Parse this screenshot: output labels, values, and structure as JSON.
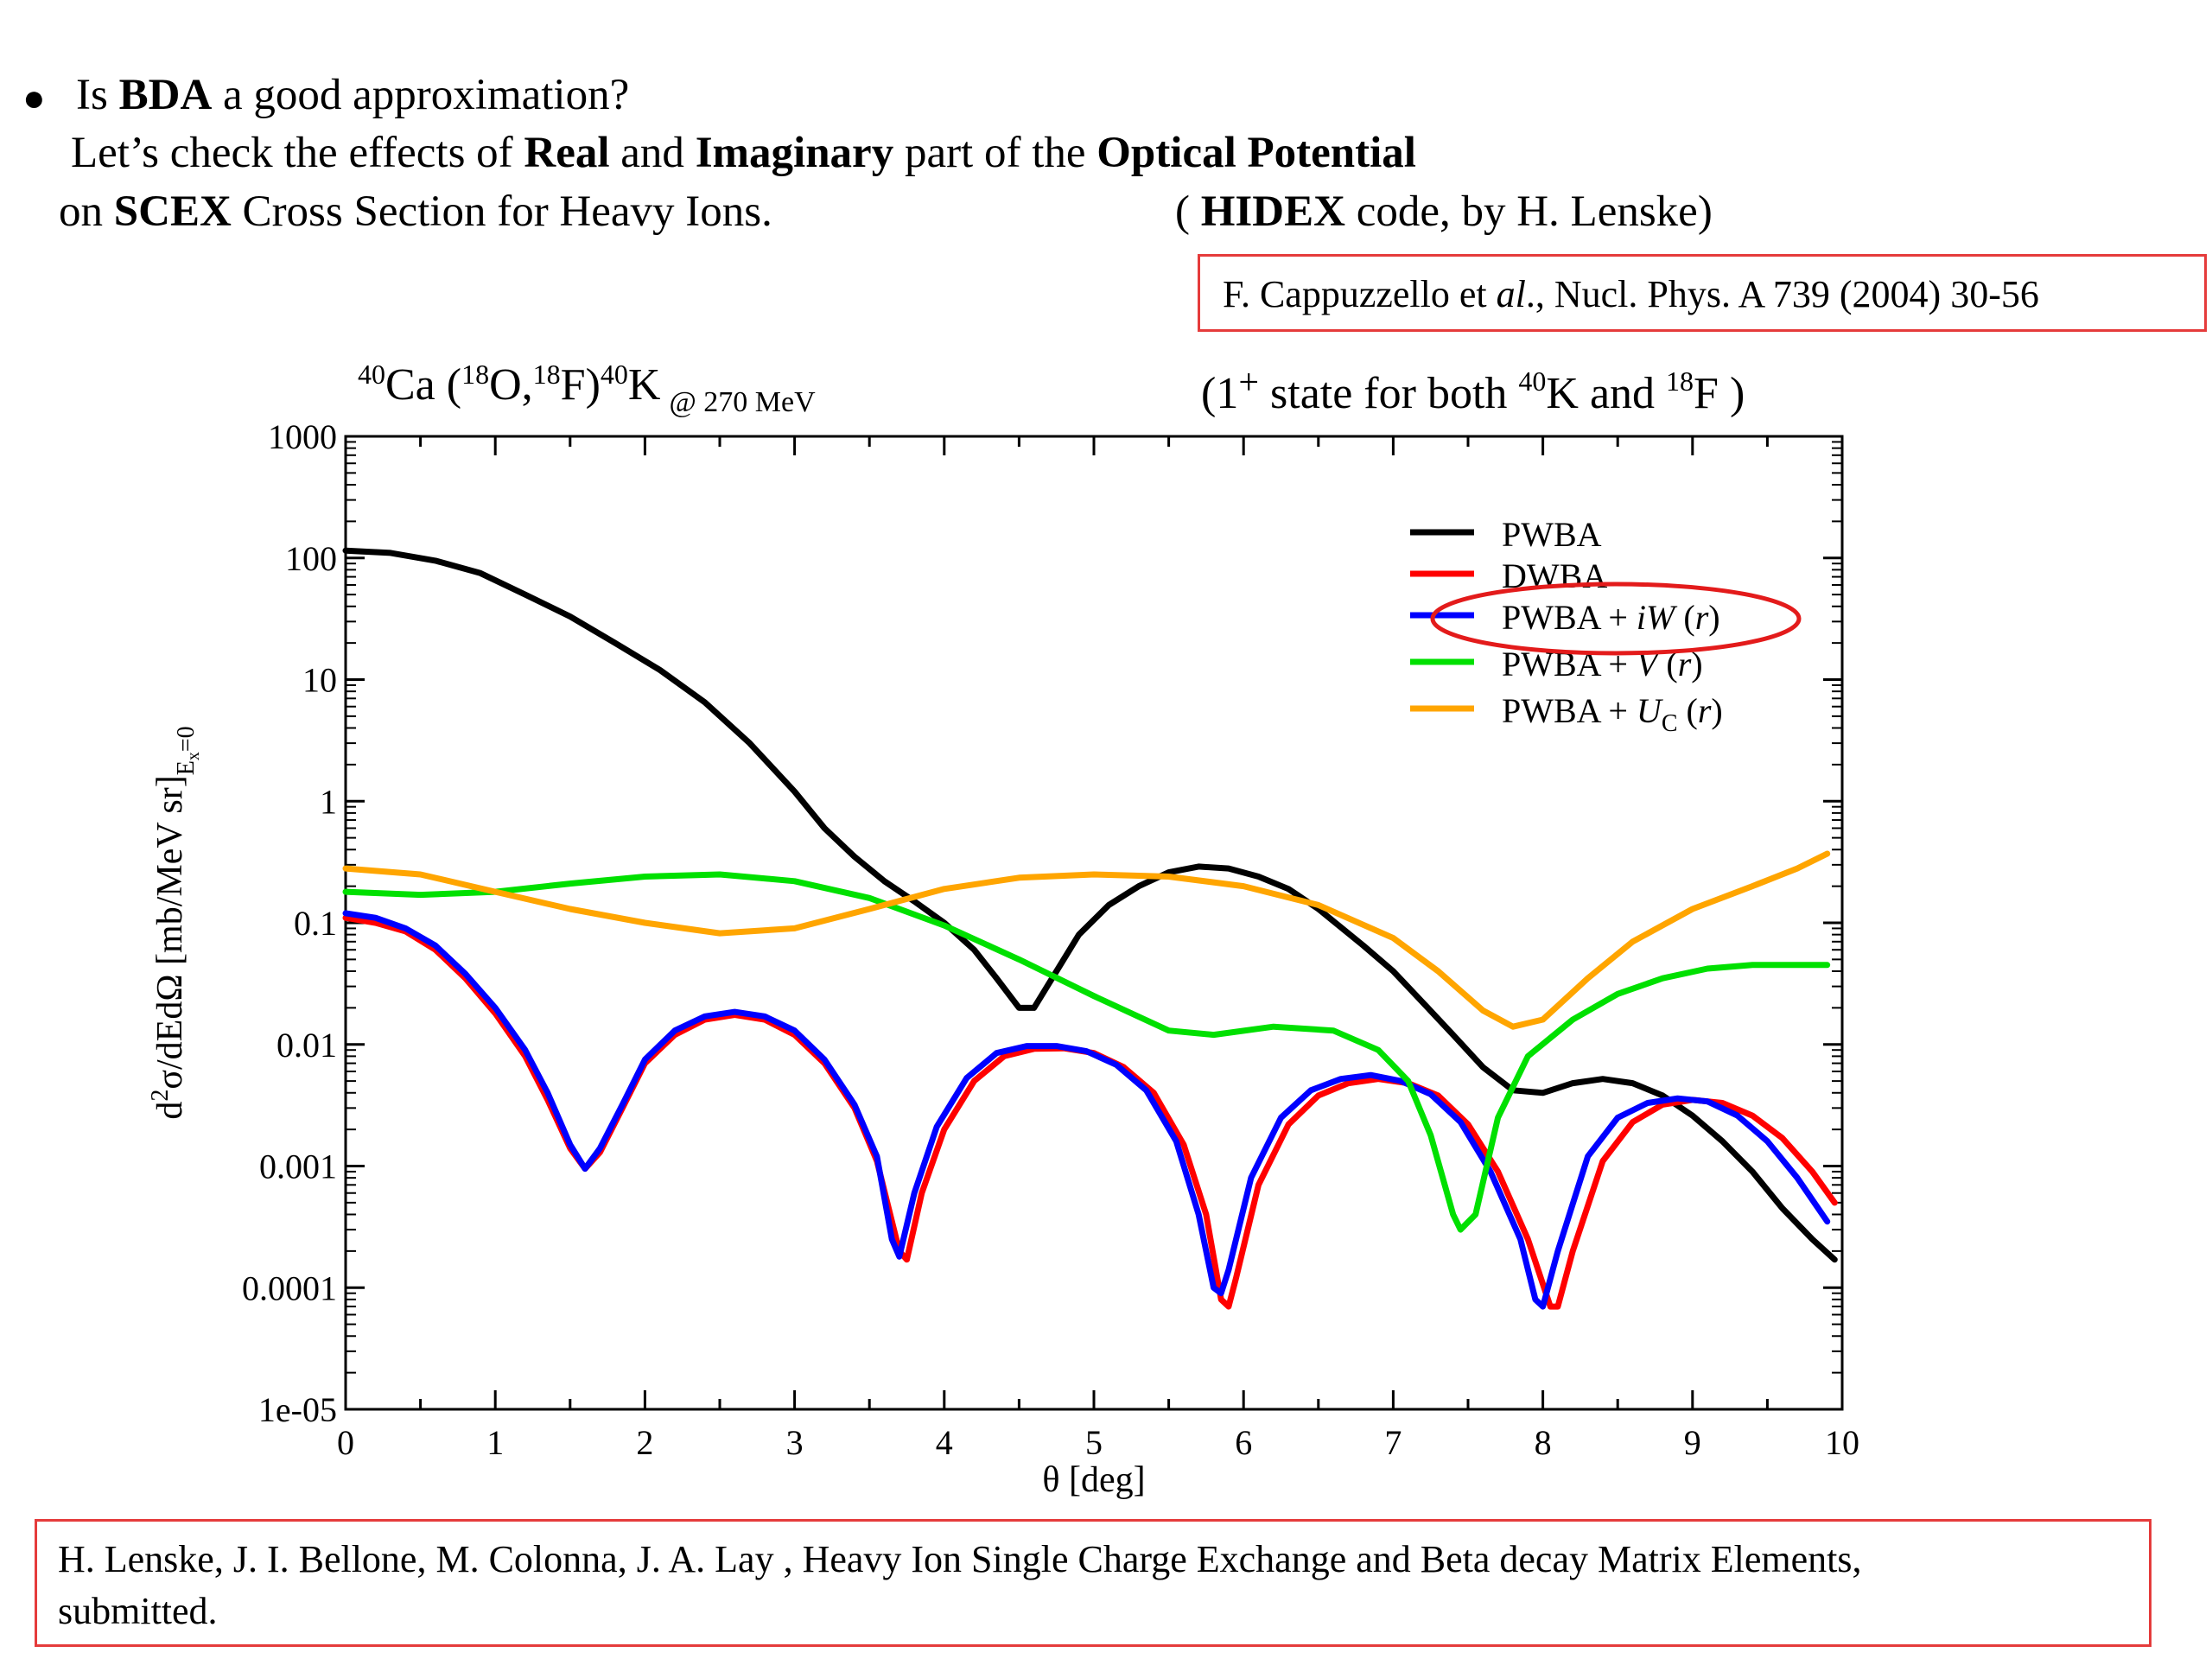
{
  "header": {
    "bullet": "●",
    "line1": {
      "a": "Is ",
      "b": "BDA",
      "c": " a good approximation?"
    },
    "line2": {
      "a": "Let’s check the effects of  ",
      "b": "Real",
      "c": " and ",
      "d": "Imaginary",
      "e": " part of the ",
      "f": "Optical Potential"
    },
    "line3": {
      "a": "on ",
      "b": "SCEX",
      "c": " Cross Section for Heavy Ions."
    },
    "line3_right": {
      "a": "( ",
      "b": "HIDEX",
      "c": " code,  by H. Lenske)"
    }
  },
  "reference_top": {
    "a": "F. Cappuzzello et ",
    "b": "al",
    "c": "., Nucl. Phys. A 739 (2004) 30-56"
  },
  "reference_bottom": {
    "line1": "H. Lenske, J. I. Bellone, M. Colonna, J. A. Lay ,  Heavy Ion Single Charge Exchange and Beta decay Matrix Elements,",
    "line2": "submitted."
  },
  "colors": {
    "highlight_box": "#e53b3b",
    "highlight_ellipse": "#e31b1b"
  },
  "chart_data": {
    "type": "line",
    "title": {
      "reaction": {
        "s40a": "40",
        "ca": "Ca (",
        "s18a": "18",
        "o": "O,",
        "s18b": "18",
        "f": "F)",
        "s40b": "40",
        "k": "K",
        "energy": "@ 270 MeV"
      },
      "state": {
        "a": "(1",
        "plus": "+",
        "b": " state for both ",
        "s40": "40",
        "k": "K  and ",
        "s18": "18",
        "f": "F )"
      }
    },
    "xlabel": "θ [deg]",
    "ylabel": {
      "main": "d",
      "sup": "2",
      "rest": "σ/dEdΩ [mb/MeV sr]",
      "sub": "E",
      "subsub": "x",
      "subend": "=0"
    },
    "xlim": [
      0,
      10
    ],
    "ylim": [
      1e-05,
      1000
    ],
    "yscale": "log",
    "grid": false,
    "legend_position": "top-right",
    "x_ticks": [
      "0",
      "1",
      "2",
      "3",
      "4",
      "5",
      "6",
      "7",
      "8",
      "9",
      "10"
    ],
    "y_ticks": [
      "1e-05",
      "0.0001",
      "0.001",
      "0.01",
      "0.1",
      "1",
      "10",
      "100",
      "1000"
    ],
    "highlighted_series": "PWBA + iW (r)",
    "series": [
      {
        "name": "PWBA",
        "label": {
          "text": "PWBA"
        },
        "color": "#000000",
        "points": [
          [
            0,
            115
          ],
          [
            0.3,
            110
          ],
          [
            0.6,
            95
          ],
          [
            0.9,
            75
          ],
          [
            1.2,
            50
          ],
          [
            1.5,
            33
          ],
          [
            1.8,
            20
          ],
          [
            2.1,
            12
          ],
          [
            2.4,
            6.5
          ],
          [
            2.7,
            3
          ],
          [
            3.0,
            1.2
          ],
          [
            3.2,
            0.6
          ],
          [
            3.4,
            0.35
          ],
          [
            3.6,
            0.22
          ],
          [
            3.8,
            0.15
          ],
          [
            4.0,
            0.1
          ],
          [
            4.2,
            0.06
          ],
          [
            4.35,
            0.035
          ],
          [
            4.5,
            0.02
          ],
          [
            4.6,
            0.02
          ],
          [
            4.75,
            0.04
          ],
          [
            4.9,
            0.08
          ],
          [
            5.1,
            0.14
          ],
          [
            5.3,
            0.2
          ],
          [
            5.5,
            0.26
          ],
          [
            5.7,
            0.29
          ],
          [
            5.9,
            0.28
          ],
          [
            6.1,
            0.24
          ],
          [
            6.3,
            0.19
          ],
          [
            6.5,
            0.13
          ],
          [
            6.8,
            0.065
          ],
          [
            7.0,
            0.04
          ],
          [
            7.2,
            0.022
          ],
          [
            7.4,
            0.012
          ],
          [
            7.6,
            0.0065
          ],
          [
            7.8,
            0.0042
          ],
          [
            8.0,
            0.004
          ],
          [
            8.2,
            0.0048
          ],
          [
            8.4,
            0.0052
          ],
          [
            8.6,
            0.0048
          ],
          [
            8.8,
            0.0038
          ],
          [
            9.0,
            0.0026
          ],
          [
            9.2,
            0.0016
          ],
          [
            9.4,
            0.0009
          ],
          [
            9.6,
            0.00045
          ],
          [
            9.8,
            0.00025
          ],
          [
            9.95,
            0.00017
          ]
        ]
      },
      {
        "name": "DWBA",
        "label": {
          "text": "DWBA"
        },
        "color": "#ff0000",
        "points": [
          [
            0,
            0.11
          ],
          [
            0.2,
            0.1
          ],
          [
            0.4,
            0.085
          ],
          [
            0.6,
            0.06
          ],
          [
            0.8,
            0.035
          ],
          [
            1.0,
            0.018
          ],
          [
            1.2,
            0.008
          ],
          [
            1.35,
            0.0035
          ],
          [
            1.5,
            0.0014
          ],
          [
            1.6,
            0.00095
          ],
          [
            1.7,
            0.0013
          ],
          [
            1.85,
            0.003
          ],
          [
            2.0,
            0.007
          ],
          [
            2.2,
            0.012
          ],
          [
            2.4,
            0.016
          ],
          [
            2.6,
            0.0175
          ],
          [
            2.8,
            0.016
          ],
          [
            3.0,
            0.012
          ],
          [
            3.2,
            0.007
          ],
          [
            3.4,
            0.003
          ],
          [
            3.55,
            0.0011
          ],
          [
            3.7,
            0.0002
          ],
          [
            3.75,
            0.00017
          ],
          [
            3.85,
            0.0006
          ],
          [
            4.0,
            0.002
          ],
          [
            4.2,
            0.005
          ],
          [
            4.4,
            0.008
          ],
          [
            4.6,
            0.0092
          ],
          [
            4.8,
            0.0093
          ],
          [
            5.0,
            0.0085
          ],
          [
            5.2,
            0.0065
          ],
          [
            5.4,
            0.004
          ],
          [
            5.6,
            0.0015
          ],
          [
            5.75,
            0.0004
          ],
          [
            5.85,
            8e-05
          ],
          [
            5.9,
            7e-05
          ],
          [
            5.95,
            0.00012
          ],
          [
            6.1,
            0.0007
          ],
          [
            6.3,
            0.0022
          ],
          [
            6.5,
            0.0038
          ],
          [
            6.7,
            0.0048
          ],
          [
            6.9,
            0.0052
          ],
          [
            7.1,
            0.0048
          ],
          [
            7.3,
            0.0038
          ],
          [
            7.5,
            0.0022
          ],
          [
            7.7,
            0.0009
          ],
          [
            7.9,
            0.00025
          ],
          [
            8.05,
            7e-05
          ],
          [
            8.1,
            7e-05
          ],
          [
            8.2,
            0.0002
          ],
          [
            8.4,
            0.0011
          ],
          [
            8.6,
            0.0023
          ],
          [
            8.8,
            0.0032
          ],
          [
            9.0,
            0.0035
          ],
          [
            9.2,
            0.0033
          ],
          [
            9.4,
            0.0026
          ],
          [
            9.6,
            0.0017
          ],
          [
            9.8,
            0.0009
          ],
          [
            9.95,
            0.0005
          ]
        ]
      },
      {
        "name": "PWBA + iW (r)",
        "label": {
          "a": "PWBA + ",
          "i": "iW",
          "b": " (",
          "r": "r",
          "c": ")"
        },
        "color": "#0000ff",
        "points": [
          [
            0,
            0.12
          ],
          [
            0.2,
            0.11
          ],
          [
            0.4,
            0.09
          ],
          [
            0.6,
            0.065
          ],
          [
            0.8,
            0.038
          ],
          [
            1.0,
            0.02
          ],
          [
            1.2,
            0.009
          ],
          [
            1.35,
            0.004
          ],
          [
            1.5,
            0.0015
          ],
          [
            1.6,
            0.00095
          ],
          [
            1.7,
            0.0014
          ],
          [
            1.85,
            0.0032
          ],
          [
            2.0,
            0.0075
          ],
          [
            2.2,
            0.013
          ],
          [
            2.4,
            0.017
          ],
          [
            2.6,
            0.0185
          ],
          [
            2.8,
            0.017
          ],
          [
            3.0,
            0.013
          ],
          [
            3.2,
            0.0075
          ],
          [
            3.4,
            0.0032
          ],
          [
            3.55,
            0.0012
          ],
          [
            3.65,
            0.00025
          ],
          [
            3.7,
            0.00018
          ],
          [
            3.8,
            0.0006
          ],
          [
            3.95,
            0.0021
          ],
          [
            4.15,
            0.0053
          ],
          [
            4.35,
            0.0085
          ],
          [
            4.55,
            0.0097
          ],
          [
            4.75,
            0.0097
          ],
          [
            4.95,
            0.0088
          ],
          [
            5.15,
            0.0068
          ],
          [
            5.35,
            0.0042
          ],
          [
            5.55,
            0.0016
          ],
          [
            5.7,
            0.0004
          ],
          [
            5.8,
            0.0001
          ],
          [
            5.85,
            9e-05
          ],
          [
            5.9,
            0.00014
          ],
          [
            6.05,
            0.0008
          ],
          [
            6.25,
            0.0025
          ],
          [
            6.45,
            0.0042
          ],
          [
            6.65,
            0.0052
          ],
          [
            6.85,
            0.0056
          ],
          [
            7.05,
            0.005
          ],
          [
            7.25,
            0.0039
          ],
          [
            7.45,
            0.0023
          ],
          [
            7.65,
            0.0009
          ],
          [
            7.85,
            0.00025
          ],
          [
            7.95,
            8e-05
          ],
          [
            8.0,
            7e-05
          ],
          [
            8.1,
            0.0002
          ],
          [
            8.3,
            0.0012
          ],
          [
            8.5,
            0.0025
          ],
          [
            8.7,
            0.0033
          ],
          [
            8.9,
            0.0036
          ],
          [
            9.1,
            0.0034
          ],
          [
            9.3,
            0.0026
          ],
          [
            9.5,
            0.0016
          ],
          [
            9.7,
            0.0008
          ],
          [
            9.9,
            0.00035
          ]
        ]
      },
      {
        "name": "PWBA + V (r)",
        "label": {
          "a": "PWBA + ",
          "i": "V",
          "b": " (",
          "r": "r",
          "c": ")"
        },
        "color": "#00e000",
        "points": [
          [
            0,
            0.18
          ],
          [
            0.5,
            0.17
          ],
          [
            1.0,
            0.18
          ],
          [
            1.5,
            0.21
          ],
          [
            2.0,
            0.24
          ],
          [
            2.5,
            0.25
          ],
          [
            3.0,
            0.22
          ],
          [
            3.5,
            0.16
          ],
          [
            4.0,
            0.095
          ],
          [
            4.5,
            0.05
          ],
          [
            5.0,
            0.025
          ],
          [
            5.5,
            0.013
          ],
          [
            5.8,
            0.012
          ],
          [
            6.2,
            0.014
          ],
          [
            6.6,
            0.013
          ],
          [
            6.9,
            0.009
          ],
          [
            7.1,
            0.005
          ],
          [
            7.25,
            0.0018
          ],
          [
            7.4,
            0.0004
          ],
          [
            7.45,
            0.0003
          ],
          [
            7.55,
            0.0004
          ],
          [
            7.7,
            0.0025
          ],
          [
            7.9,
            0.008
          ],
          [
            8.2,
            0.016
          ],
          [
            8.5,
            0.026
          ],
          [
            8.8,
            0.035
          ],
          [
            9.1,
            0.042
          ],
          [
            9.4,
            0.045
          ],
          [
            9.9,
            0.045
          ]
        ]
      },
      {
        "name": "PWBA + UC (r)",
        "label": {
          "a": "PWBA + ",
          "i": "U",
          "sub": "C",
          "b": " (",
          "r": "r",
          "c": ")"
        },
        "color": "#ffa500",
        "points": [
          [
            0,
            0.28
          ],
          [
            0.5,
            0.25
          ],
          [
            1.0,
            0.18
          ],
          [
            1.5,
            0.13
          ],
          [
            2.0,
            0.1
          ],
          [
            2.5,
            0.082
          ],
          [
            3.0,
            0.09
          ],
          [
            3.5,
            0.13
          ],
          [
            4.0,
            0.19
          ],
          [
            4.5,
            0.235
          ],
          [
            5.0,
            0.25
          ],
          [
            5.5,
            0.24
          ],
          [
            6.0,
            0.2
          ],
          [
            6.5,
            0.14
          ],
          [
            7.0,
            0.075
          ],
          [
            7.3,
            0.04
          ],
          [
            7.6,
            0.019
          ],
          [
            7.8,
            0.014
          ],
          [
            8.0,
            0.016
          ],
          [
            8.3,
            0.035
          ],
          [
            8.6,
            0.07
          ],
          [
            9.0,
            0.13
          ],
          [
            9.4,
            0.2
          ],
          [
            9.7,
            0.28
          ],
          [
            9.9,
            0.37
          ]
        ]
      }
    ]
  }
}
